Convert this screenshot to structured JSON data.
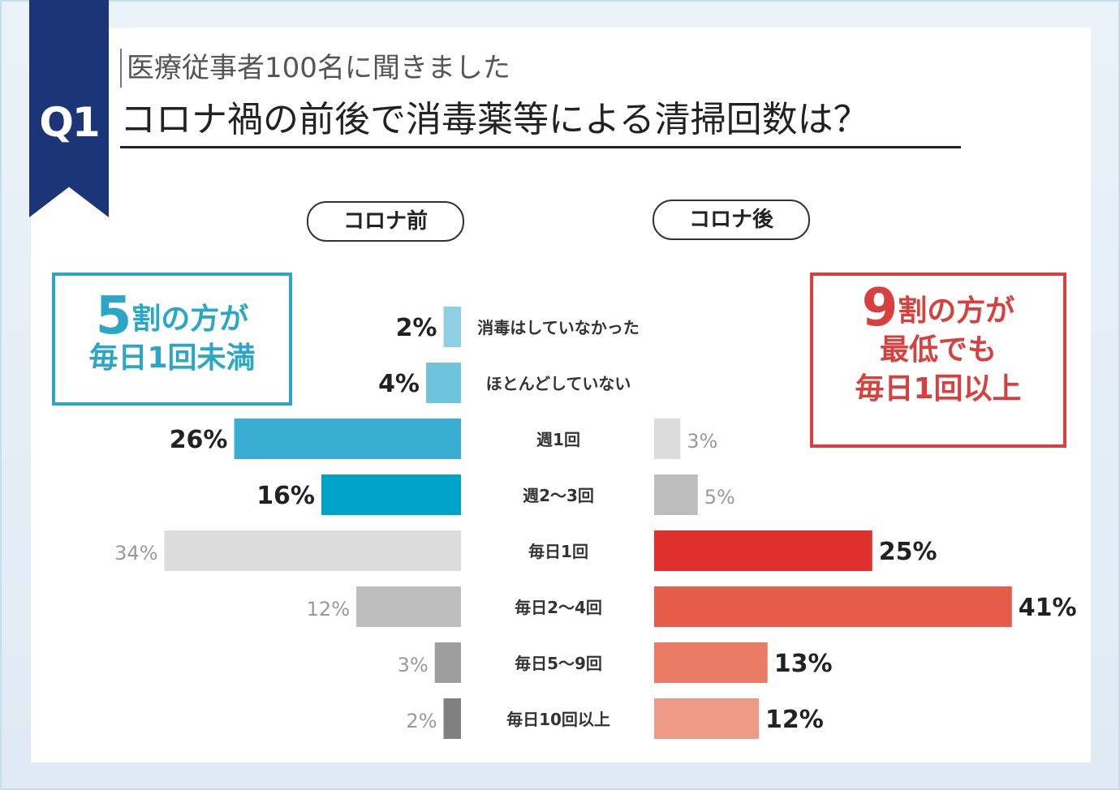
{
  "header": {
    "badge": "Q1",
    "subtitle": "医療従事者100名に聞きました",
    "title": "コロナ禍の前後で消毒薬等による清掃回数は？"
  },
  "labels": {
    "before": "コロナ前",
    "after": "コロナ後"
  },
  "callouts": {
    "left": {
      "big": "5",
      "line1_rest": "割の方が",
      "line2": "毎日1回未満"
    },
    "right": {
      "big": "9",
      "line1_rest": "割の方が",
      "line2": "最低でも",
      "line3": "毎日1回以上"
    }
  },
  "colors": {
    "navy": "#1b3577",
    "blue_accent": "#2aa6c6",
    "red_accent": "#d9403d",
    "before": [
      "#8fd0e2",
      "#6ec4dc",
      "#3aaed2",
      "#00a3c8",
      "#dcdcdc",
      "#bdbdbd",
      "#9e9e9e",
      "#808080"
    ],
    "after": [
      "#dcdcdc",
      "#bdbdbd",
      "#e0302e",
      "#e55d48",
      "#ea7c66",
      "#ef9a86"
    ]
  },
  "chart_data": {
    "type": "bar",
    "categories": [
      "消毒はしていなかった",
      "ほとんどしていない",
      "週1回",
      "週2〜3回",
      "毎日1回",
      "毎日2〜4回",
      "毎日5〜9回",
      "毎日10回以上"
    ],
    "series": [
      {
        "name": "コロナ前",
        "values": [
          2,
          4,
          26,
          16,
          34,
          12,
          3,
          2
        ],
        "labels": [
          "2%",
          "4%",
          "26%",
          "16%",
          "34%",
          "12%",
          "3%",
          "2%"
        ]
      },
      {
        "name": "コロナ後",
        "values": [
          null,
          null,
          3,
          5,
          25,
          41,
          13,
          12
        ],
        "labels": [
          "",
          "",
          "3%",
          "5%",
          "25%",
          "41%",
          "13%",
          "12%"
        ]
      }
    ]
  }
}
